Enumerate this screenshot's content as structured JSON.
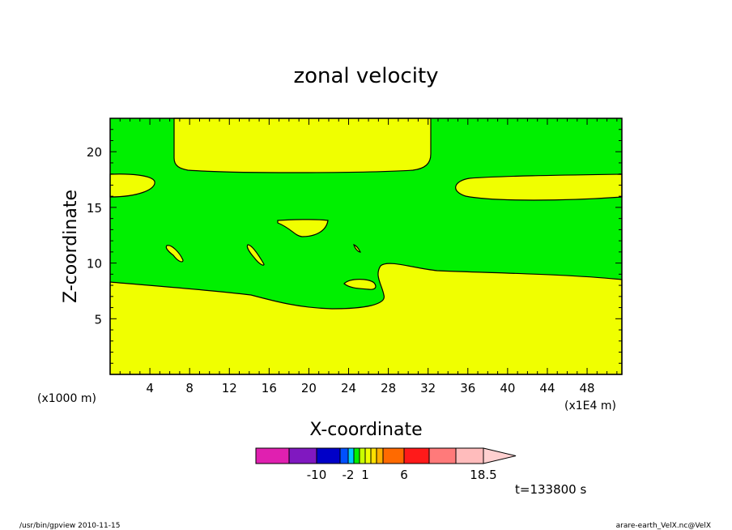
{
  "chart_data": {
    "type": "heatmap",
    "title": "zonal velocity",
    "xlabel": "X-coordinate",
    "ylabel": "Z-coordinate",
    "x_unit_left": "(x1000 m)",
    "x_unit_right": "(x1E4 m)",
    "xlim": [
      0,
      51.5
    ],
    "ylim": [
      0,
      23
    ],
    "x_ticks": [
      4,
      8,
      12,
      16,
      20,
      24,
      28,
      32,
      36,
      40,
      44,
      48
    ],
    "y_ticks": [
      5,
      10,
      15,
      20
    ],
    "colors": {
      "positive_region": "#f0ff00",
      "negative_region": "#00f000",
      "contour": "#000000"
    },
    "colorbar": {
      "colors": [
        "#e020b0",
        "#8018c0",
        "#0000c8",
        "#0050ff",
        "#00c8ff",
        "#00f000",
        "#c8ff00",
        "#f0ff00",
        "#ffe000",
        "#ffb000",
        "#ff6a00",
        "#ff1a1a",
        "#ff7a7a",
        "#ffbcbc",
        "#ffd0d0"
      ],
      "tick_labels": [
        "-10",
        "-2",
        "1",
        "6",
        "18.5"
      ]
    },
    "time_label": "t=133800 s"
  },
  "footer": {
    "left": "/usr/bin/gpview   2010-11-15",
    "right": "arare-earth_VelX.nc@VelX"
  }
}
